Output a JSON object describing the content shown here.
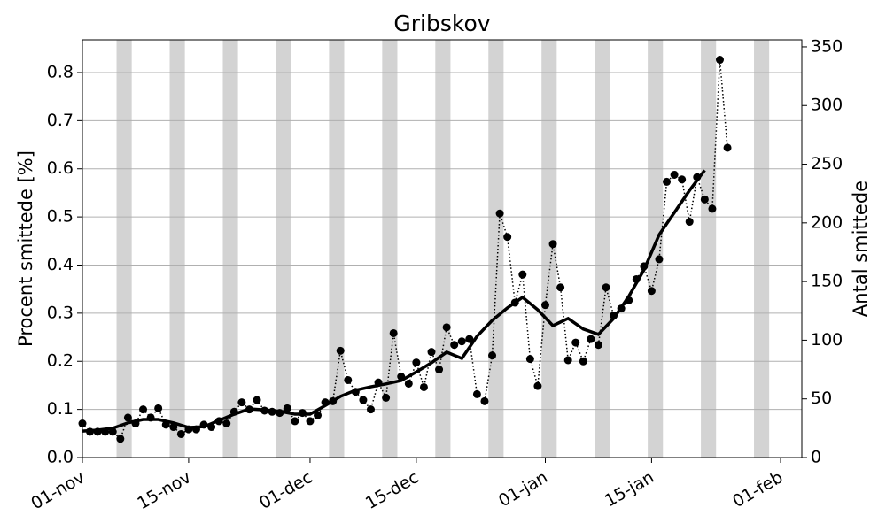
{
  "chart_data": {
    "type": "line",
    "title": "Gribskov",
    "ylabel": "Procent smittede [%]",
    "y2label": "Antal smittede",
    "xlim": [
      0,
      94.8
    ],
    "xticks": [
      {
        "value": 0,
        "label": "01-nov"
      },
      {
        "value": 14,
        "label": "15-nov"
      },
      {
        "value": 30,
        "label": "01-dec"
      },
      {
        "value": 44,
        "label": "15-dec"
      },
      {
        "value": 61,
        "label": "01-jan"
      },
      {
        "value": 75,
        "label": "15-jan"
      },
      {
        "value": 92,
        "label": "01-feb"
      }
    ],
    "ylim": [
      0,
      0.868
    ],
    "yticks": [
      {
        "value": 0,
        "label": "0.0"
      },
      0.1,
      0.2,
      0.3,
      0.4,
      0.5,
      0.6,
      0.7,
      0.8
    ],
    "y2lim": [
      0,
      356
    ],
    "y2ticks": [
      0,
      50,
      100,
      150,
      200,
      250,
      300,
      350
    ],
    "grid": true,
    "shaded_color": "#d3d3d3",
    "shaded_spans": [
      [
        4.5,
        6.5
      ],
      [
        11.5,
        13.5
      ],
      [
        18.5,
        20.5
      ],
      [
        25.5,
        27.5
      ],
      [
        32.5,
        34.5
      ],
      [
        39.5,
        41.5
      ],
      [
        46.5,
        48.5
      ],
      [
        53.5,
        55.5
      ],
      [
        60.5,
        62.5
      ],
      [
        67.5,
        69.5
      ],
      [
        74.5,
        76.5
      ],
      [
        81.5,
        83.5
      ],
      [
        88.5,
        90.5
      ]
    ],
    "series": [
      {
        "style": "solid",
        "color": "#000000",
        "axis": "y",
        "x": [
          0,
          2,
          4,
          6,
          8,
          10,
          12,
          14,
          16,
          18,
          20,
          22,
          24,
          26,
          28,
          30,
          32,
          34,
          36,
          38,
          40,
          42,
          44,
          46,
          48,
          50,
          52,
          54,
          56,
          58,
          60,
          62,
          64,
          66,
          68,
          70,
          72,
          74,
          76,
          78,
          80,
          82
        ],
        "values": [
          0.055,
          0.057,
          0.061,
          0.072,
          0.079,
          0.079,
          0.072,
          0.0625,
          0.064,
          0.077,
          0.09,
          0.101,
          0.099,
          0.096,
          0.09,
          0.09,
          0.108,
          0.127,
          0.14,
          0.147,
          0.153,
          0.16,
          0.178,
          0.197,
          0.219,
          0.206,
          0.252,
          0.285,
          0.311,
          0.333,
          0.307,
          0.274,
          0.289,
          0.267,
          0.256,
          0.289,
          0.335,
          0.39,
          0.463,
          0.509,
          0.555,
          0.597
        ]
      },
      {
        "style": "dotted-markers",
        "color": "#000000",
        "axis": "y2",
        "x": [
          0,
          1,
          2,
          3,
          4,
          5,
          6,
          7,
          8,
          9,
          10,
          11,
          12,
          13,
          14,
          15,
          16,
          17,
          18,
          19,
          20,
          21,
          22,
          23,
          24,
          25,
          26,
          27,
          28,
          29,
          30,
          31,
          32,
          33,
          34,
          35,
          36,
          37,
          38,
          39,
          40,
          41,
          42,
          43,
          44,
          45,
          46,
          47,
          48,
          49,
          50,
          51,
          52,
          53,
          54,
          55,
          56,
          57,
          58,
          59,
          60,
          61,
          62,
          63,
          64,
          65,
          66,
          67,
          68,
          69,
          70,
          71,
          72,
          73,
          74,
          75,
          76,
          77,
          78,
          79,
          80,
          81,
          82,
          83,
          84,
          85
        ],
        "values": [
          29,
          22,
          22,
          22,
          22,
          16,
          34,
          29,
          41,
          34,
          42,
          28,
          26,
          20,
          24,
          24,
          28,
          26,
          31,
          29,
          39,
          47,
          41,
          49,
          40,
          39,
          38,
          42,
          31,
          38,
          31,
          36,
          47,
          48,
          91,
          66,
          56,
          49,
          41,
          64,
          51,
          106,
          69,
          63,
          81,
          60,
          90,
          75,
          111,
          96,
          99,
          101,
          54,
          48,
          87,
          208,
          188,
          132,
          156,
          84,
          61,
          130,
          182,
          145,
          83,
          98,
          82,
          101,
          96,
          145,
          121,
          127,
          134,
          152,
          163,
          142,
          169,
          235,
          241,
          237,
          201,
          239,
          220,
          212,
          339,
          264
        ]
      }
    ]
  }
}
